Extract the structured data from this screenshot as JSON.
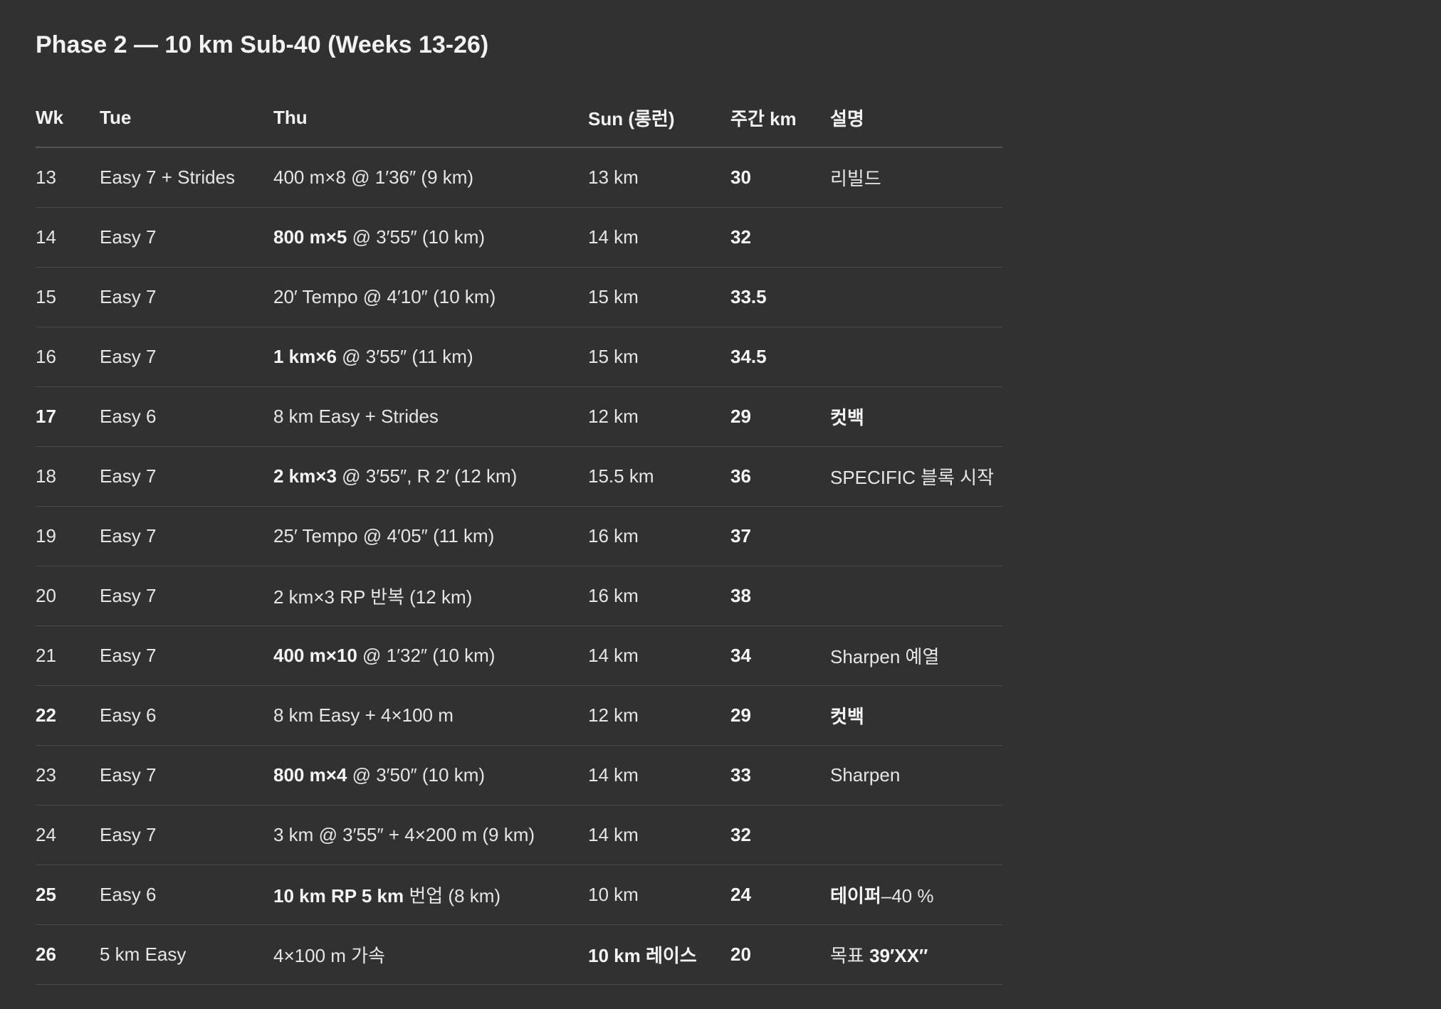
{
  "title": "Phase 2 — 10 km Sub-40 (Weeks 13-26)",
  "headers": [
    "Wk",
    "Tue",
    "Thu",
    "Sun (롱런)",
    "주간 km",
    "설명"
  ],
  "rows": [
    {
      "wk": "13",
      "wk_bold": false,
      "tue": "Easy 7 + Strides",
      "thu_bold": "",
      "thu": "400 m×8 @ 1′36″ (9 km)",
      "sun_bold": "",
      "sun": "13 km",
      "km": "30",
      "note_bold": "",
      "note": "리빌드"
    },
    {
      "wk": "14",
      "wk_bold": false,
      "tue": "Easy 7",
      "thu_bold": "800 m×5",
      "thu": " @ 3′55″ (10 km)",
      "sun_bold": "",
      "sun": "14 km",
      "km": "32",
      "note_bold": "",
      "note": ""
    },
    {
      "wk": "15",
      "wk_bold": false,
      "tue": "Easy 7",
      "thu_bold": "",
      "thu": "20′ Tempo @ 4′10″ (10 km)",
      "sun_bold": "",
      "sun": "15 km",
      "km": "33.5",
      "note_bold": "",
      "note": ""
    },
    {
      "wk": "16",
      "wk_bold": false,
      "tue": "Easy 7",
      "thu_bold": "1 km×6",
      "thu": " @ 3′55″ (11 km)",
      "sun_bold": "",
      "sun": "15 km",
      "km": "34.5",
      "note_bold": "",
      "note": ""
    },
    {
      "wk": "17",
      "wk_bold": true,
      "tue": "Easy 6",
      "thu_bold": "",
      "thu": "8 km Easy + Strides",
      "sun_bold": "",
      "sun": "12 km",
      "km": "29",
      "note_bold": "컷백",
      "note": ""
    },
    {
      "wk": "18",
      "wk_bold": false,
      "tue": "Easy 7",
      "thu_bold": "2 km×3",
      "thu": " @ 3′55″, R 2′ (12 km)",
      "sun_bold": "",
      "sun": "15.5 km",
      "km": "36",
      "note_bold": "",
      "note": "SPECIFIC 블록 시작"
    },
    {
      "wk": "19",
      "wk_bold": false,
      "tue": "Easy 7",
      "thu_bold": "",
      "thu": "25′ Tempo @ 4′05″ (11 km)",
      "sun_bold": "",
      "sun": "16 km",
      "km": "37",
      "note_bold": "",
      "note": ""
    },
    {
      "wk": "20",
      "wk_bold": false,
      "tue": "Easy 7",
      "thu_bold": "",
      "thu": "2 km×3 RP 반복 (12 km)",
      "sun_bold": "",
      "sun": "16 km",
      "km": "38",
      "note_bold": "",
      "note": ""
    },
    {
      "wk": "21",
      "wk_bold": false,
      "tue": "Easy 7",
      "thu_bold": "400 m×10",
      "thu": " @ 1′32″ (10 km)",
      "sun_bold": "",
      "sun": "14 km",
      "km": "34",
      "note_bold": "",
      "note": "Sharpen 예열"
    },
    {
      "wk": "22",
      "wk_bold": true,
      "tue": "Easy 6",
      "thu_bold": "",
      "thu": "8 km Easy + 4×100 m",
      "sun_bold": "",
      "sun": "12 km",
      "km": "29",
      "note_bold": "컷백",
      "note": ""
    },
    {
      "wk": "23",
      "wk_bold": false,
      "tue": "Easy 7",
      "thu_bold": "800 m×4",
      "thu": " @ 3′50″ (10 km)",
      "sun_bold": "",
      "sun": "14 km",
      "km": "33",
      "note_bold": "",
      "note": "Sharpen"
    },
    {
      "wk": "24",
      "wk_bold": false,
      "tue": "Easy 7",
      "thu_bold": "",
      "thu": "3 km @ 3′55″ + 4×200 m (9 km)",
      "sun_bold": "",
      "sun": "14 km",
      "km": "32",
      "note_bold": "",
      "note": ""
    },
    {
      "wk": "25",
      "wk_bold": true,
      "tue": "Easy 6",
      "thu_bold": "10 km RP 5 km",
      "thu": " 번업 (8 km)",
      "sun_bold": "",
      "sun": "10 km",
      "km": "24",
      "note_bold": "테이퍼",
      "note": "–40 %"
    },
    {
      "wk": "26",
      "wk_bold": true,
      "tue": "5 km Easy",
      "thu_bold": "",
      "thu": "4×100 m 가속",
      "sun_bold": "10 km 레이스",
      "sun": "",
      "km": "20",
      "note_bold": "39′XX″",
      "note": "목표 ",
      "note_order": "plain-first"
    }
  ]
}
